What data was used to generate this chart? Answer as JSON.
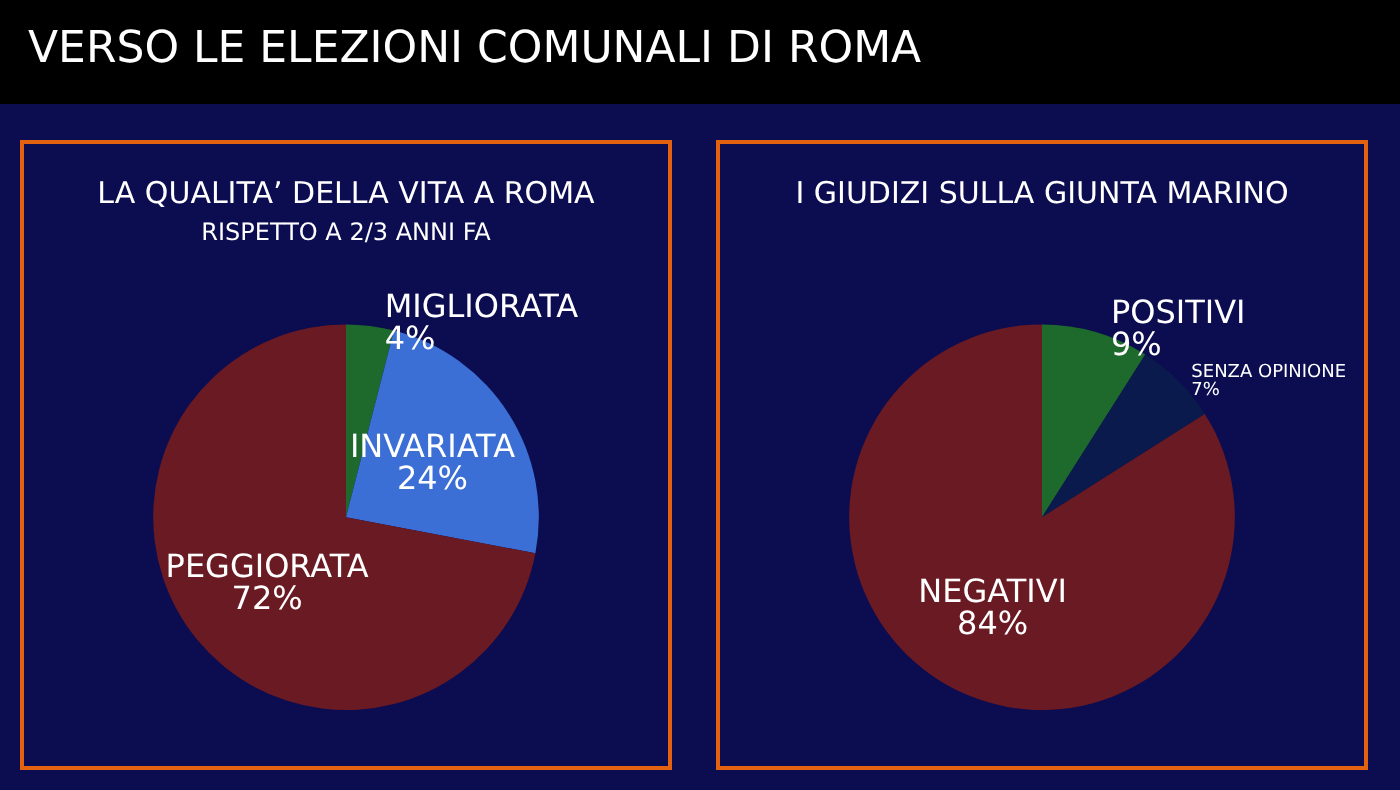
{
  "chart_data": [
    {
      "type": "pie",
      "title": "LA QUALITA’ DELLA VITA A ROMA",
      "subtitle": "RISPETTO A 2/3 ANNI FA",
      "annotations": [
        "VERSO LE ELEZIONI COMUNALI DI ROMA"
      ],
      "categories": [
        "MIGLIORATA",
        "INVARIATA",
        "PEGGIORATA"
      ],
      "values": [
        4,
        24,
        72
      ],
      "value_labels": [
        "4%",
        "24%",
        "72%"
      ],
      "colors": [
        "#1d6a2c",
        "#3b6fd6",
        "#6a1a22"
      ]
    },
    {
      "type": "pie",
      "title": "I GIUDIZI SULLA GIUNTA MARINO",
      "categories": [
        "POSITIVI",
        "SENZA OPINIONE",
        "NEGATIVI"
      ],
      "values": [
        9,
        7,
        84
      ],
      "value_labels": [
        "9%",
        "7%",
        "84%"
      ],
      "colors": [
        "#1d6a2c",
        "#0b1a4c",
        "#6a1a22"
      ]
    }
  ]
}
